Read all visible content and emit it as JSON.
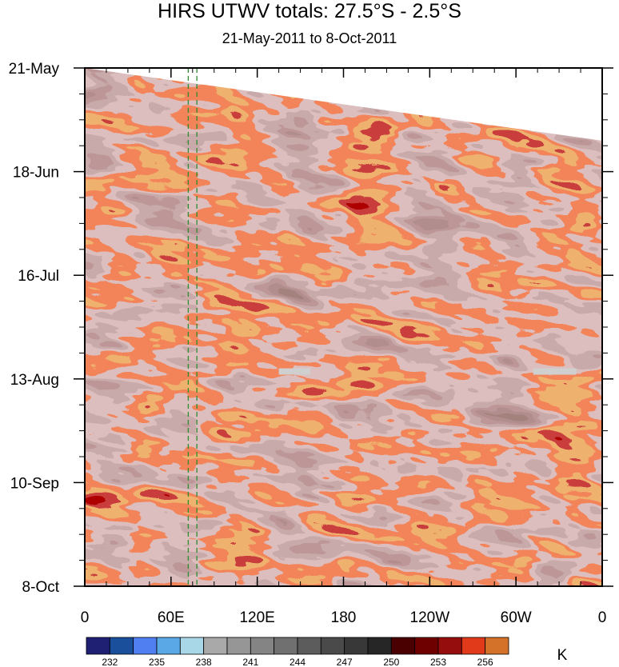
{
  "chart_data": {
    "type": "heatmap",
    "title": "HIRS UTWV totals: 27.5°S - 2.5°S",
    "subtitle": "21-May-2011 to 8-Oct-2011",
    "x_ticks": [
      "0",
      "60E",
      "120E",
      "180",
      "120W",
      "60W",
      "0"
    ],
    "y_ticks": [
      "21-May",
      "18-Jun",
      "16-Jul",
      "13-Aug",
      "10-Sep",
      "8-Oct"
    ],
    "xlim_deg_east": [
      0,
      360
    ],
    "x_tick_values_deg_east": [
      0,
      60,
      120,
      180,
      240,
      300,
      360
    ],
    "ylim": [
      "2011-05-21",
      "2011-10-08"
    ],
    "y_tick_values": [
      "2011-05-21",
      "2011-06-18",
      "2011-07-16",
      "2011-08-13",
      "2011-09-10",
      "2011-10-08"
    ],
    "colorbar": {
      "unit": "K",
      "levels": [
        232,
        235,
        238,
        241,
        244,
        247,
        250,
        253,
        256
      ],
      "colors": [
        "#1f1f73",
        "#1a4f9c",
        "#4f7ff0",
        "#5aa8e6",
        "#a8d8e8",
        "#a9a9a9",
        "#969696",
        "#848484",
        "#707070",
        "#5c5c5c",
        "#4a4a4a",
        "#383838",
        "#262626",
        "#4a0000",
        "#6e0000",
        "#960d0d",
        "#e03a1a",
        "#d4722a"
      ]
    },
    "vertical_lines_deg_east": [
      72,
      78
    ],
    "missing_data_bars": [
      {
        "lon_start_deg_east": 135,
        "lon_end_deg_east": 157,
        "date": "2011-08-11"
      },
      {
        "lon_start_deg_east": 312,
        "lon_end_deg_east": 342,
        "date": "2011-08-11"
      }
    ],
    "grid": false,
    "legend": "bottom"
  }
}
